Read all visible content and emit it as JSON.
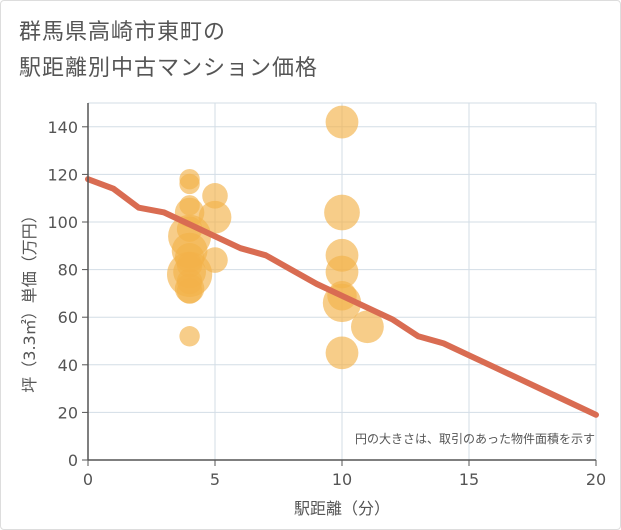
{
  "chart_data": {
    "type": "scatter",
    "title": [
      "群馬県高崎市東町の",
      "駅距離別中古マンション価格"
    ],
    "xlabel": "駅距離（分）",
    "ylabel": "坪（3.3㎡）単価（万円）",
    "xlim": [
      0,
      20
    ],
    "ylim": [
      0,
      150
    ],
    "xticks": [
      0,
      5,
      10,
      15,
      20
    ],
    "yticks": [
      0,
      20,
      40,
      60,
      80,
      100,
      120,
      140
    ],
    "note": "円の大きさは、取引のあった物件面積を示す",
    "grid": true,
    "colors": {
      "bubble": "#f3b24a",
      "trend": "#d96c52",
      "grid": "#d3dde6",
      "axis": "#555555"
    },
    "bubbles": [
      {
        "x": 4,
        "y": 118,
        "s": 1
      },
      {
        "x": 4,
        "y": 116,
        "s": 1
      },
      {
        "x": 4,
        "y": 107,
        "s": 1
      },
      {
        "x": 4,
        "y": 104,
        "s": 3
      },
      {
        "x": 4,
        "y": 97,
        "s": 2
      },
      {
        "x": 4,
        "y": 94,
        "s": 8
      },
      {
        "x": 4,
        "y": 88,
        "s": 5
      },
      {
        "x": 4,
        "y": 85,
        "s": 3
      },
      {
        "x": 4,
        "y": 82,
        "s": 2
      },
      {
        "x": 4,
        "y": 79,
        "s": 4
      },
      {
        "x": 4,
        "y": 78,
        "s": 9
      },
      {
        "x": 4,
        "y": 75,
        "s": 2
      },
      {
        "x": 4,
        "y": 72,
        "s": 3
      },
      {
        "x": 4,
        "y": 71,
        "s": 2
      },
      {
        "x": 4,
        "y": 52,
        "s": 1
      },
      {
        "x": 5,
        "y": 111,
        "s": 2
      },
      {
        "x": 5,
        "y": 102,
        "s": 4
      },
      {
        "x": 5,
        "y": 84,
        "s": 2
      },
      {
        "x": 10,
        "y": 142,
        "s": 4
      },
      {
        "x": 10,
        "y": 104,
        "s": 5
      },
      {
        "x": 10,
        "y": 86,
        "s": 4
      },
      {
        "x": 10,
        "y": 79,
        "s": 4
      },
      {
        "x": 10,
        "y": 69,
        "s": 3
      },
      {
        "x": 10,
        "y": 66,
        "s": 6
      },
      {
        "x": 10,
        "y": 45,
        "s": 4
      },
      {
        "x": 11,
        "y": 56,
        "s": 4
      }
    ],
    "trend": {
      "x": [
        0,
        1,
        2,
        3,
        4,
        5,
        6,
        7,
        8,
        9,
        10,
        11,
        12,
        13,
        14,
        15,
        16,
        17,
        18,
        19,
        20
      ],
      "y": [
        118,
        114,
        106,
        104,
        99,
        94,
        89,
        86,
        80,
        74,
        69,
        64,
        59,
        52,
        49,
        44,
        39,
        34,
        29,
        24,
        19
      ]
    }
  }
}
